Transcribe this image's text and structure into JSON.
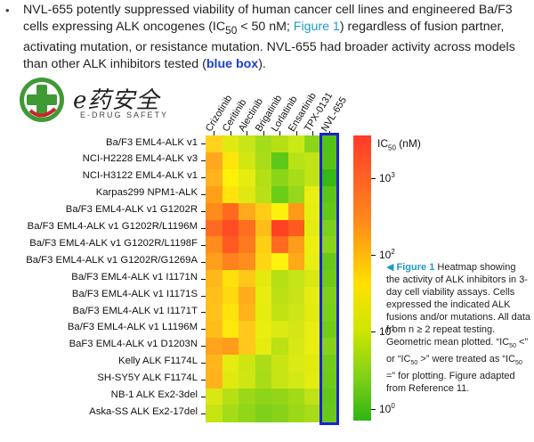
{
  "intro": {
    "bullet": "•",
    "part1": "NVL-655 potently suppressed viability of human cancer cell lines and engineered Ba/F3 cells expressing ALK oncogenes (IC",
    "sub": "50",
    "part2": " < 50 nM; ",
    "figure_link": "Figure 1",
    "part3": ") regardless of fusion partner, activating mutation, or resistance mutation. NVL-655 had broader activity across models than other ALK inhibitors tested (",
    "blue_box": "blue box",
    "part4": ")."
  },
  "logo": {
    "text": "e药安全",
    "subtitle": "E-DRUG SAFETY",
    "colors": {
      "green": "#3f9a35",
      "red": "#c8262a"
    }
  },
  "heatmap": {
    "columns": [
      "Crizotinib",
      "Ceritinib",
      "Alectinib",
      "Brigatinib",
      "Lorlatinib",
      "Ensartinib",
      "TPX-0131",
      "NVL-655"
    ],
    "rows": [
      "Ba/F3 EML4-ALK v1",
      "NCI-H2228 EML4-ALK v3",
      "NCI-H3122 EML4-ALK v1",
      "Karpas299 NPM1-ALK",
      "Ba/F3 EML4-ALK v1 G1202R",
      "Ba/F3 EML4-ALK v1 G1202R/L1196M",
      "Ba/F3 EML4-ALK v1 G1202R/L1198F",
      "Ba/F3 EML4-ALK v1 G1202R/G1269A",
      "Ba/F3 EML4-ALK v1 I1171N",
      "Ba/F3 EML4-ALK v1 I1171S",
      "Ba/F3 EML4-ALK v1 I1171T",
      "Ba/F3 EML4-ALK v1 L1196M",
      "BaF3 EML4-ALK v1 D1203N",
      "Kelly ALK F1174L",
      "SH-SY5Y ALK F1174L",
      "NB-1 ALK Ex2-3del",
      "Aska-SS ALK Ex2-17del"
    ],
    "colors": [
      [
        "#ffd21e",
        "#e0ea10",
        "#c8e51a",
        "#a4dc1c",
        "#b6e014",
        "#caea18",
        "#8ed41a",
        "#52c412"
      ],
      [
        "#ffa81e",
        "#ffe60a",
        "#d2e612",
        "#aadc1a",
        "#5ec81a",
        "#b8e218",
        "#c2e414",
        "#58c412"
      ],
      [
        "#ffb41e",
        "#fff00a",
        "#e4ec10",
        "#b4de16",
        "#8cd418",
        "#a8dc18",
        "#c0e416",
        "#36b912"
      ],
      [
        "#ffa018",
        "#ffe40c",
        "#dfe812",
        "#b9e016",
        "#6ccd18",
        "#96d71a",
        "#e8ef10",
        "#5ac714"
      ],
      [
        "#ff8c1a",
        "#ff6a1e",
        "#ffaa1c",
        "#ffcc16",
        "#fff00e",
        "#ff9a18",
        "#e6ee10",
        "#64c914"
      ],
      [
        "#ff6a22",
        "#ff4c22",
        "#ff6f1f",
        "#ffbd18",
        "#ff4222",
        "#ff5a20",
        "#e2ec10",
        "#7cd018"
      ],
      [
        "#ff8c1c",
        "#ff5a22",
        "#ff7a1e",
        "#ffcf16",
        "#ff6a20",
        "#ff9c1a",
        "#ecef0e",
        "#8cd41a"
      ],
      [
        "#ffa01c",
        "#ff821e",
        "#ff8e1c",
        "#ffd616",
        "#fff20c",
        "#ffa81a",
        "#e8ee10",
        "#68ca16"
      ],
      [
        "#ffb81c",
        "#ffe00c",
        "#ffc818",
        "#e2ea10",
        "#b6e014",
        "#c4e418",
        "#d9e812",
        "#6ecc16"
      ],
      [
        "#ffc01a",
        "#ffd810",
        "#ffac1c",
        "#e8ec10",
        "#bde014",
        "#c8e418",
        "#e4ec10",
        "#80d018"
      ],
      [
        "#ffc21a",
        "#ffe40c",
        "#ffb41c",
        "#e4ec10",
        "#c3e214",
        "#cce618",
        "#e1eb10",
        "#7ad018"
      ],
      [
        "#ffbd1a",
        "#ffe80c",
        "#ffc81a",
        "#eaee10",
        "#dbe812",
        "#d4e616",
        "#e8ed10",
        "#72cd16"
      ],
      [
        "#ffa41c",
        "#ff9c1c",
        "#ffc81a",
        "#e4ec10",
        "#bbe014",
        "#d6e816",
        "#e8ee10",
        "#86d219"
      ],
      [
        "#ffb61c",
        "#e4ec10",
        "#cde612",
        "#abdc16",
        "#c9e414",
        "#d9ea14",
        "#e1eb10",
        "#72cd16"
      ],
      [
        "#ffb21c",
        "#e0ea10",
        "#cfe612",
        "#a9dc16",
        "#c7e414",
        "#d3e814",
        "#e2ec10",
        "#6ecc16"
      ],
      [
        "#d9e812",
        "#b6e014",
        "#9ad818",
        "#8ed418",
        "#93d618",
        "#a2da18",
        "#c0e214",
        "#64c914"
      ],
      [
        "#c6e412",
        "#a4dc18",
        "#92d618",
        "#7ed01a",
        "#88d21a",
        "#9cd818",
        "#a8dc18",
        "#68ca16"
      ]
    ]
  },
  "colorbar": {
    "title_main": "IC",
    "title_sub": "50",
    "title_unit": " (nM)",
    "ticks": [
      {
        "base": "10",
        "exp": "3"
      },
      {
        "base": "10",
        "exp": "2"
      },
      {
        "base": "10",
        "exp": "1"
      },
      {
        "base": "10",
        "exp": "0"
      }
    ]
  },
  "caption": {
    "arrow": "◀",
    "title": "Figure 1",
    "body1": " Heatmap showing the activity of ALK inhibitors in 3-day cell viability assays. Cells expressed the indicated ALK fusions and/or mutations. All data from n ≥ 2 repeat testing. Geometric mean plotted. “IC",
    "s1": "50",
    "body2": " <” or “IC",
    "s2": "50",
    "body3": " >” were treated as “IC",
    "s3": "50",
    "body4": " =” for plotting. Figure adapted from Reference 11."
  }
}
